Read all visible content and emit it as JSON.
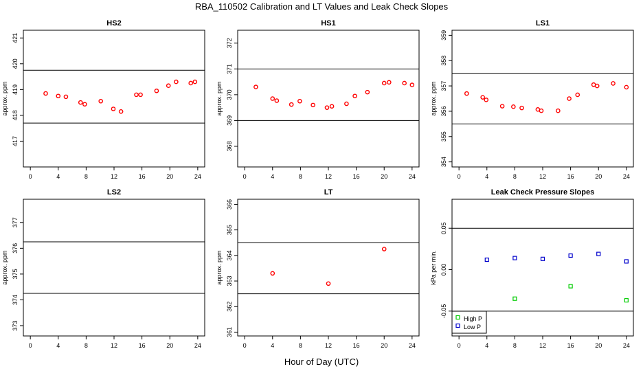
{
  "title": "RBA_110502  Calibration and LT Values and Leak Check Slopes",
  "xlabel": "Hour of Day (UTC)",
  "colors": {
    "red": "#ff0000",
    "green": "#00cc00",
    "blue": "#0000cc",
    "line": "#000000"
  },
  "chart_data": [
    {
      "type": "scatter",
      "title": "HS2",
      "ylabel": "approx. ppm",
      "xlim": [
        -1,
        25
      ],
      "xticks": [
        0,
        4,
        8,
        12,
        16,
        20,
        24
      ],
      "ylim": [
        416.0,
        421.3
      ],
      "yticks": [
        417,
        418,
        419,
        420,
        421
      ],
      "hlines": [
        417.7,
        419.75
      ],
      "series": [
        {
          "color": "red",
          "marker": "circle",
          "x": [
            2.2,
            4.0,
            5.1,
            7.2,
            7.8,
            10.1,
            11.9,
            13.0,
            15.2,
            15.8,
            18.1,
            19.8,
            20.9,
            23.0,
            23.6
          ],
          "y": [
            418.85,
            418.75,
            418.72,
            418.5,
            418.43,
            418.55,
            418.25,
            418.15,
            418.8,
            418.8,
            418.95,
            419.15,
            419.3,
            419.25,
            419.3
          ]
        }
      ]
    },
    {
      "type": "scatter",
      "title": "HS1",
      "ylabel": "approx. ppm",
      "xlim": [
        -1,
        25
      ],
      "xticks": [
        0,
        4,
        8,
        12,
        16,
        20,
        24
      ],
      "ylim": [
        367.2,
        372.5
      ],
      "yticks": [
        368,
        369,
        370,
        371,
        372
      ],
      "hlines": [
        369.0,
        371.0
      ],
      "series": [
        {
          "color": "red",
          "marker": "circle",
          "x": [
            1.6,
            4.0,
            4.6,
            6.7,
            7.9,
            9.8,
            11.8,
            12.5,
            14.6,
            15.8,
            17.6,
            20.0,
            20.7,
            22.9,
            24.0
          ],
          "y": [
            370.3,
            369.85,
            369.77,
            369.62,
            369.75,
            369.6,
            369.5,
            369.55,
            369.65,
            369.95,
            370.1,
            370.45,
            370.48,
            370.45,
            370.38
          ]
        }
      ]
    },
    {
      "type": "scatter",
      "title": "LS1",
      "ylabel": "approx. ppm",
      "xlim": [
        -1,
        25
      ],
      "xticks": [
        0,
        4,
        8,
        12,
        16,
        20,
        24
      ],
      "ylim": [
        353.8,
        359.2
      ],
      "yticks": [
        354,
        355,
        356,
        357,
        358,
        359
      ],
      "hlines": [
        355.5,
        357.5
      ],
      "series": [
        {
          "color": "red",
          "marker": "circle",
          "x": [
            1.1,
            3.4,
            3.9,
            6.2,
            7.8,
            9.0,
            11.3,
            11.8,
            14.2,
            15.8,
            17.0,
            19.3,
            19.8,
            22.1,
            24.0
          ],
          "y": [
            356.7,
            356.55,
            356.45,
            356.2,
            356.18,
            356.13,
            356.07,
            356.02,
            356.02,
            356.5,
            356.65,
            357.05,
            357.0,
            357.1,
            356.95
          ]
        }
      ]
    },
    {
      "type": "scatter",
      "title": "LS2",
      "ylabel": "approx. ppm",
      "xlim": [
        -1,
        25
      ],
      "xticks": [
        0,
        4,
        8,
        12,
        16,
        20,
        24
      ],
      "ylim": [
        372.6,
        377.9
      ],
      "yticks": [
        373,
        374,
        375,
        376,
        377
      ],
      "hlines": [
        374.25,
        376.25
      ],
      "series": []
    },
    {
      "type": "scatter",
      "title": "LT",
      "ylabel": "approx. ppm",
      "xlim": [
        -1,
        25
      ],
      "xticks": [
        0,
        4,
        8,
        12,
        16,
        20,
        24
      ],
      "ylim": [
        360.85,
        366.2
      ],
      "yticks": [
        361,
        362,
        363,
        364,
        365,
        366
      ],
      "hlines": [
        362.5,
        364.5
      ],
      "series": [
        {
          "color": "red",
          "marker": "circle",
          "x": [
            4.0,
            12.0,
            20.0
          ],
          "y": [
            363.3,
            362.9,
            364.25
          ]
        }
      ]
    },
    {
      "type": "scatter",
      "title": "Leak Check Pressure Slopes",
      "ylabel": "kPa per min.",
      "xlim": [
        -1,
        25
      ],
      "xticks": [
        0,
        4,
        8,
        12,
        16,
        20,
        24
      ],
      "ylim": [
        -0.08,
        0.085
      ],
      "yticks": [
        -0.05,
        0.0,
        0.05
      ],
      "ytick_labels": [
        "-0.05",
        "0.00",
        "0.05"
      ],
      "hlines": [
        -0.05,
        0.05
      ],
      "legend": {
        "position": "bottom-left",
        "entries": [
          {
            "label": "High P",
            "color": "green"
          },
          {
            "label": "Low P",
            "color": "blue"
          }
        ]
      },
      "series": [
        {
          "name": "High P",
          "color": "green",
          "marker": "square",
          "x": [
            8,
            16,
            24
          ],
          "y": [
            -0.035,
            -0.02,
            -0.037
          ]
        },
        {
          "name": "Low P",
          "color": "blue",
          "marker": "square",
          "x": [
            4,
            8,
            12,
            16,
            20,
            24
          ],
          "y": [
            0.012,
            0.014,
            0.013,
            0.017,
            0.019,
            0.01
          ]
        }
      ]
    }
  ]
}
